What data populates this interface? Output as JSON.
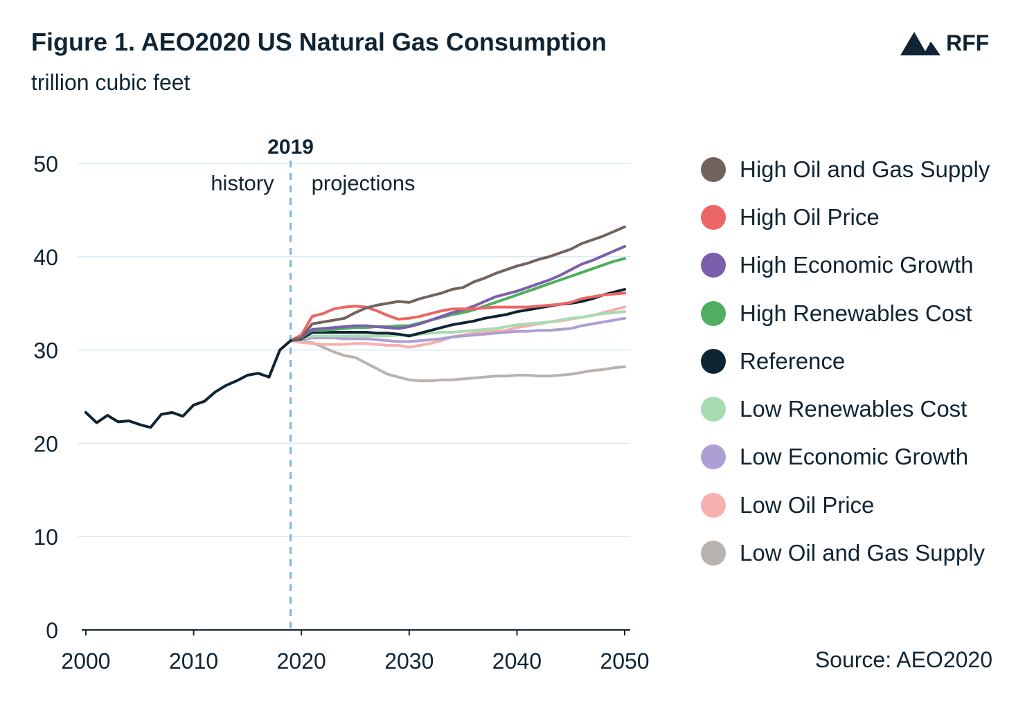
{
  "header": {
    "title": "Figure 1. AEO2020 US Natural Gas Consumption",
    "subtitle": "trillion cubic feet"
  },
  "logo": {
    "text": "RFF",
    "icon": "mountain-icon"
  },
  "source": "Source: AEO2020",
  "chart_data": {
    "type": "line",
    "title": "Figure 1. AEO2020 US Natural Gas Consumption",
    "ylabel": "trillion cubic feet",
    "xlim": [
      2000,
      2050
    ],
    "ylim": [
      0,
      50
    ],
    "x_ticks": [
      2000,
      2010,
      2020,
      2030,
      2040,
      2050
    ],
    "y_ticks": [
      0,
      10,
      20,
      30,
      40,
      50
    ],
    "grid": true,
    "legend_position": "right",
    "annotations": {
      "divider_year": 2019,
      "divider_label": "2019",
      "left_label": "history",
      "right_label": "projections"
    },
    "history": {
      "color": "#0f2433",
      "x": [
        2000,
        2001,
        2002,
        2003,
        2004,
        2005,
        2006,
        2007,
        2008,
        2009,
        2010,
        2011,
        2012,
        2013,
        2014,
        2015,
        2016,
        2017,
        2018,
        2019
      ],
      "values": [
        23.3,
        22.2,
        23.0,
        22.3,
        22.4,
        22.0,
        21.7,
        23.1,
        23.3,
        22.9,
        24.1,
        24.5,
        25.5,
        26.2,
        26.7,
        27.3,
        27.5,
        27.1,
        30.0,
        31.0
      ]
    },
    "projection_x": [
      2019,
      2020,
      2021,
      2022,
      2023,
      2024,
      2025,
      2026,
      2027,
      2028,
      2029,
      2030,
      2031,
      2032,
      2033,
      2034,
      2035,
      2036,
      2037,
      2038,
      2039,
      2040,
      2041,
      2042,
      2043,
      2044,
      2045,
      2046,
      2047,
      2048,
      2049,
      2050
    ],
    "series": [
      {
        "name": "High Oil and Gas Supply",
        "color": "#73635e",
        "values": [
          31.0,
          31.3,
          32.8,
          33.0,
          33.2,
          33.4,
          34.0,
          34.5,
          34.8,
          35.0,
          35.2,
          35.1,
          35.5,
          35.8,
          36.1,
          36.5,
          36.7,
          37.3,
          37.7,
          38.2,
          38.6,
          39.0,
          39.3,
          39.7,
          40.0,
          40.4,
          40.8,
          41.4,
          41.8,
          42.2,
          42.7,
          43.2
        ]
      },
      {
        "name": "High Oil Price",
        "color": "#ec6665",
        "values": [
          31.0,
          31.6,
          33.6,
          33.9,
          34.4,
          34.6,
          34.7,
          34.6,
          34.2,
          33.7,
          33.3,
          33.4,
          33.6,
          33.9,
          34.2,
          34.4,
          34.4,
          34.4,
          34.5,
          34.6,
          34.6,
          34.6,
          34.6,
          34.7,
          34.8,
          34.9,
          35.1,
          35.5,
          35.7,
          35.9,
          36.0,
          36.1
        ]
      },
      {
        "name": "High Economic Growth",
        "color": "#7b5fac",
        "values": [
          31.0,
          31.3,
          32.2,
          32.3,
          32.4,
          32.5,
          32.6,
          32.6,
          32.5,
          32.4,
          32.3,
          32.5,
          32.8,
          33.2,
          33.6,
          34.0,
          34.3,
          34.7,
          35.2,
          35.7,
          36.0,
          36.3,
          36.7,
          37.1,
          37.5,
          38.0,
          38.6,
          39.2,
          39.6,
          40.1,
          40.6,
          41.1
        ]
      },
      {
        "name": "High Renewables Cost",
        "color": "#4fae5f",
        "values": [
          31.0,
          31.4,
          32.1,
          32.1,
          32.2,
          32.3,
          32.4,
          32.4,
          32.5,
          32.5,
          32.6,
          32.6,
          32.9,
          33.2,
          33.5,
          33.8,
          34.0,
          34.3,
          34.7,
          35.1,
          35.5,
          35.9,
          36.3,
          36.7,
          37.1,
          37.5,
          37.9,
          38.3,
          38.7,
          39.1,
          39.5,
          39.8
        ]
      },
      {
        "name": "Reference",
        "color": "#0f2433",
        "values": [
          31.0,
          31.2,
          31.9,
          31.9,
          31.9,
          31.9,
          31.9,
          31.9,
          31.8,
          31.8,
          31.7,
          31.5,
          31.8,
          32.1,
          32.4,
          32.7,
          32.9,
          33.1,
          33.4,
          33.6,
          33.8,
          34.1,
          34.3,
          34.5,
          34.7,
          34.9,
          35.0,
          35.2,
          35.5,
          35.9,
          36.2,
          36.5
        ]
      },
      {
        "name": "Low Renewables Cost",
        "color": "#a8dbb2",
        "values": [
          31.0,
          31.2,
          31.5,
          31.5,
          31.5,
          31.5,
          31.5,
          31.5,
          31.5,
          31.5,
          31.6,
          31.6,
          31.7,
          31.8,
          31.9,
          31.9,
          32.0,
          32.1,
          32.2,
          32.3,
          32.5,
          32.7,
          32.8,
          32.9,
          33.0,
          33.2,
          33.4,
          33.5,
          33.7,
          33.9,
          34.0,
          34.1
        ]
      },
      {
        "name": "Low Economic Growth",
        "color": "#ad9fd3",
        "values": [
          31.0,
          31.1,
          31.3,
          31.3,
          31.3,
          31.2,
          31.2,
          31.2,
          31.1,
          31.0,
          30.9,
          30.9,
          31.0,
          31.1,
          31.2,
          31.4,
          31.5,
          31.6,
          31.7,
          31.8,
          31.9,
          32.0,
          32.0,
          32.1,
          32.1,
          32.2,
          32.3,
          32.6,
          32.8,
          33.0,
          33.2,
          33.4
        ]
      },
      {
        "name": "Low Oil Price",
        "color": "#f6b0ae",
        "values": [
          31.0,
          30.8,
          30.7,
          30.6,
          30.6,
          30.6,
          30.7,
          30.7,
          30.6,
          30.5,
          30.5,
          30.3,
          30.5,
          30.7,
          31.0,
          31.4,
          31.6,
          31.8,
          31.9,
          32.0,
          32.1,
          32.4,
          32.6,
          32.8,
          33.0,
          33.1,
          33.3,
          33.5,
          33.7,
          34.0,
          34.3,
          34.6
        ]
      },
      {
        "name": "Low Oil and Gas Supply",
        "color": "#b9b3b0",
        "values": [
          31.0,
          30.9,
          30.8,
          30.3,
          29.8,
          29.4,
          29.2,
          28.6,
          28.0,
          27.4,
          27.1,
          26.8,
          26.7,
          26.7,
          26.8,
          26.8,
          26.9,
          27.0,
          27.1,
          27.2,
          27.2,
          27.3,
          27.3,
          27.2,
          27.2,
          27.3,
          27.4,
          27.6,
          27.8,
          27.9,
          28.1,
          28.2
        ]
      }
    ]
  }
}
